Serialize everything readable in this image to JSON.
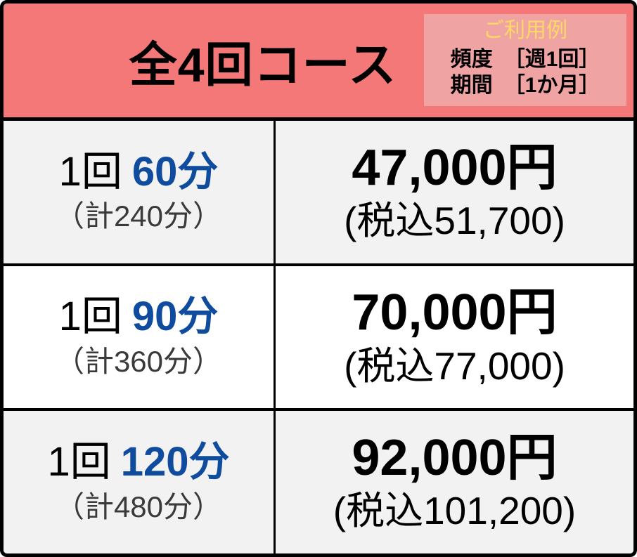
{
  "colors": {
    "header_bg": "#F47878",
    "usage_bg": "#F0A3A3",
    "usage_title_color": "#FFD966",
    "duration_color": "#0F4C9E",
    "row_bg_odd": "#F2F2F2",
    "row_bg_even": "#FFFFFF",
    "total_color": "#3A3A3A",
    "text_color": "#000000",
    "border_color": "#000000"
  },
  "header": {
    "title": "全4回コース",
    "usage_example": {
      "title": "ご利用例",
      "items": [
        {
          "label": "頻度",
          "value": "［週1回］"
        },
        {
          "label": "期間",
          "value": "［1か月］"
        }
      ]
    }
  },
  "pricing": {
    "rows": [
      {
        "per_session": "1回",
        "duration": "60分",
        "total_duration": "（計240分）",
        "price": "47,000円",
        "price_with_tax": "(税込51,700)"
      },
      {
        "per_session": "1回",
        "duration": "90分",
        "total_duration": "（計360分）",
        "price": "70,000円",
        "price_with_tax": "(税込77,000)"
      },
      {
        "per_session": "1回",
        "duration": "120分",
        "total_duration": "（計480分）",
        "price": "92,000円",
        "price_with_tax": "(税込101,200)"
      }
    ]
  },
  "chart_data": {
    "type": "table",
    "title": "全4回コース",
    "annotations": [
      "ご利用例",
      "頻度 ［週1回］",
      "期間 ［1か月］"
    ],
    "rows": [
      [
        "1回 60分（計240分）",
        "47,000円 (税込51,700)"
      ],
      [
        "1回 90分（計360分）",
        "70,000円 (税込77,000)"
      ],
      [
        "1回 120分（計480分）",
        "92,000円 (税込101,200)"
      ]
    ]
  }
}
